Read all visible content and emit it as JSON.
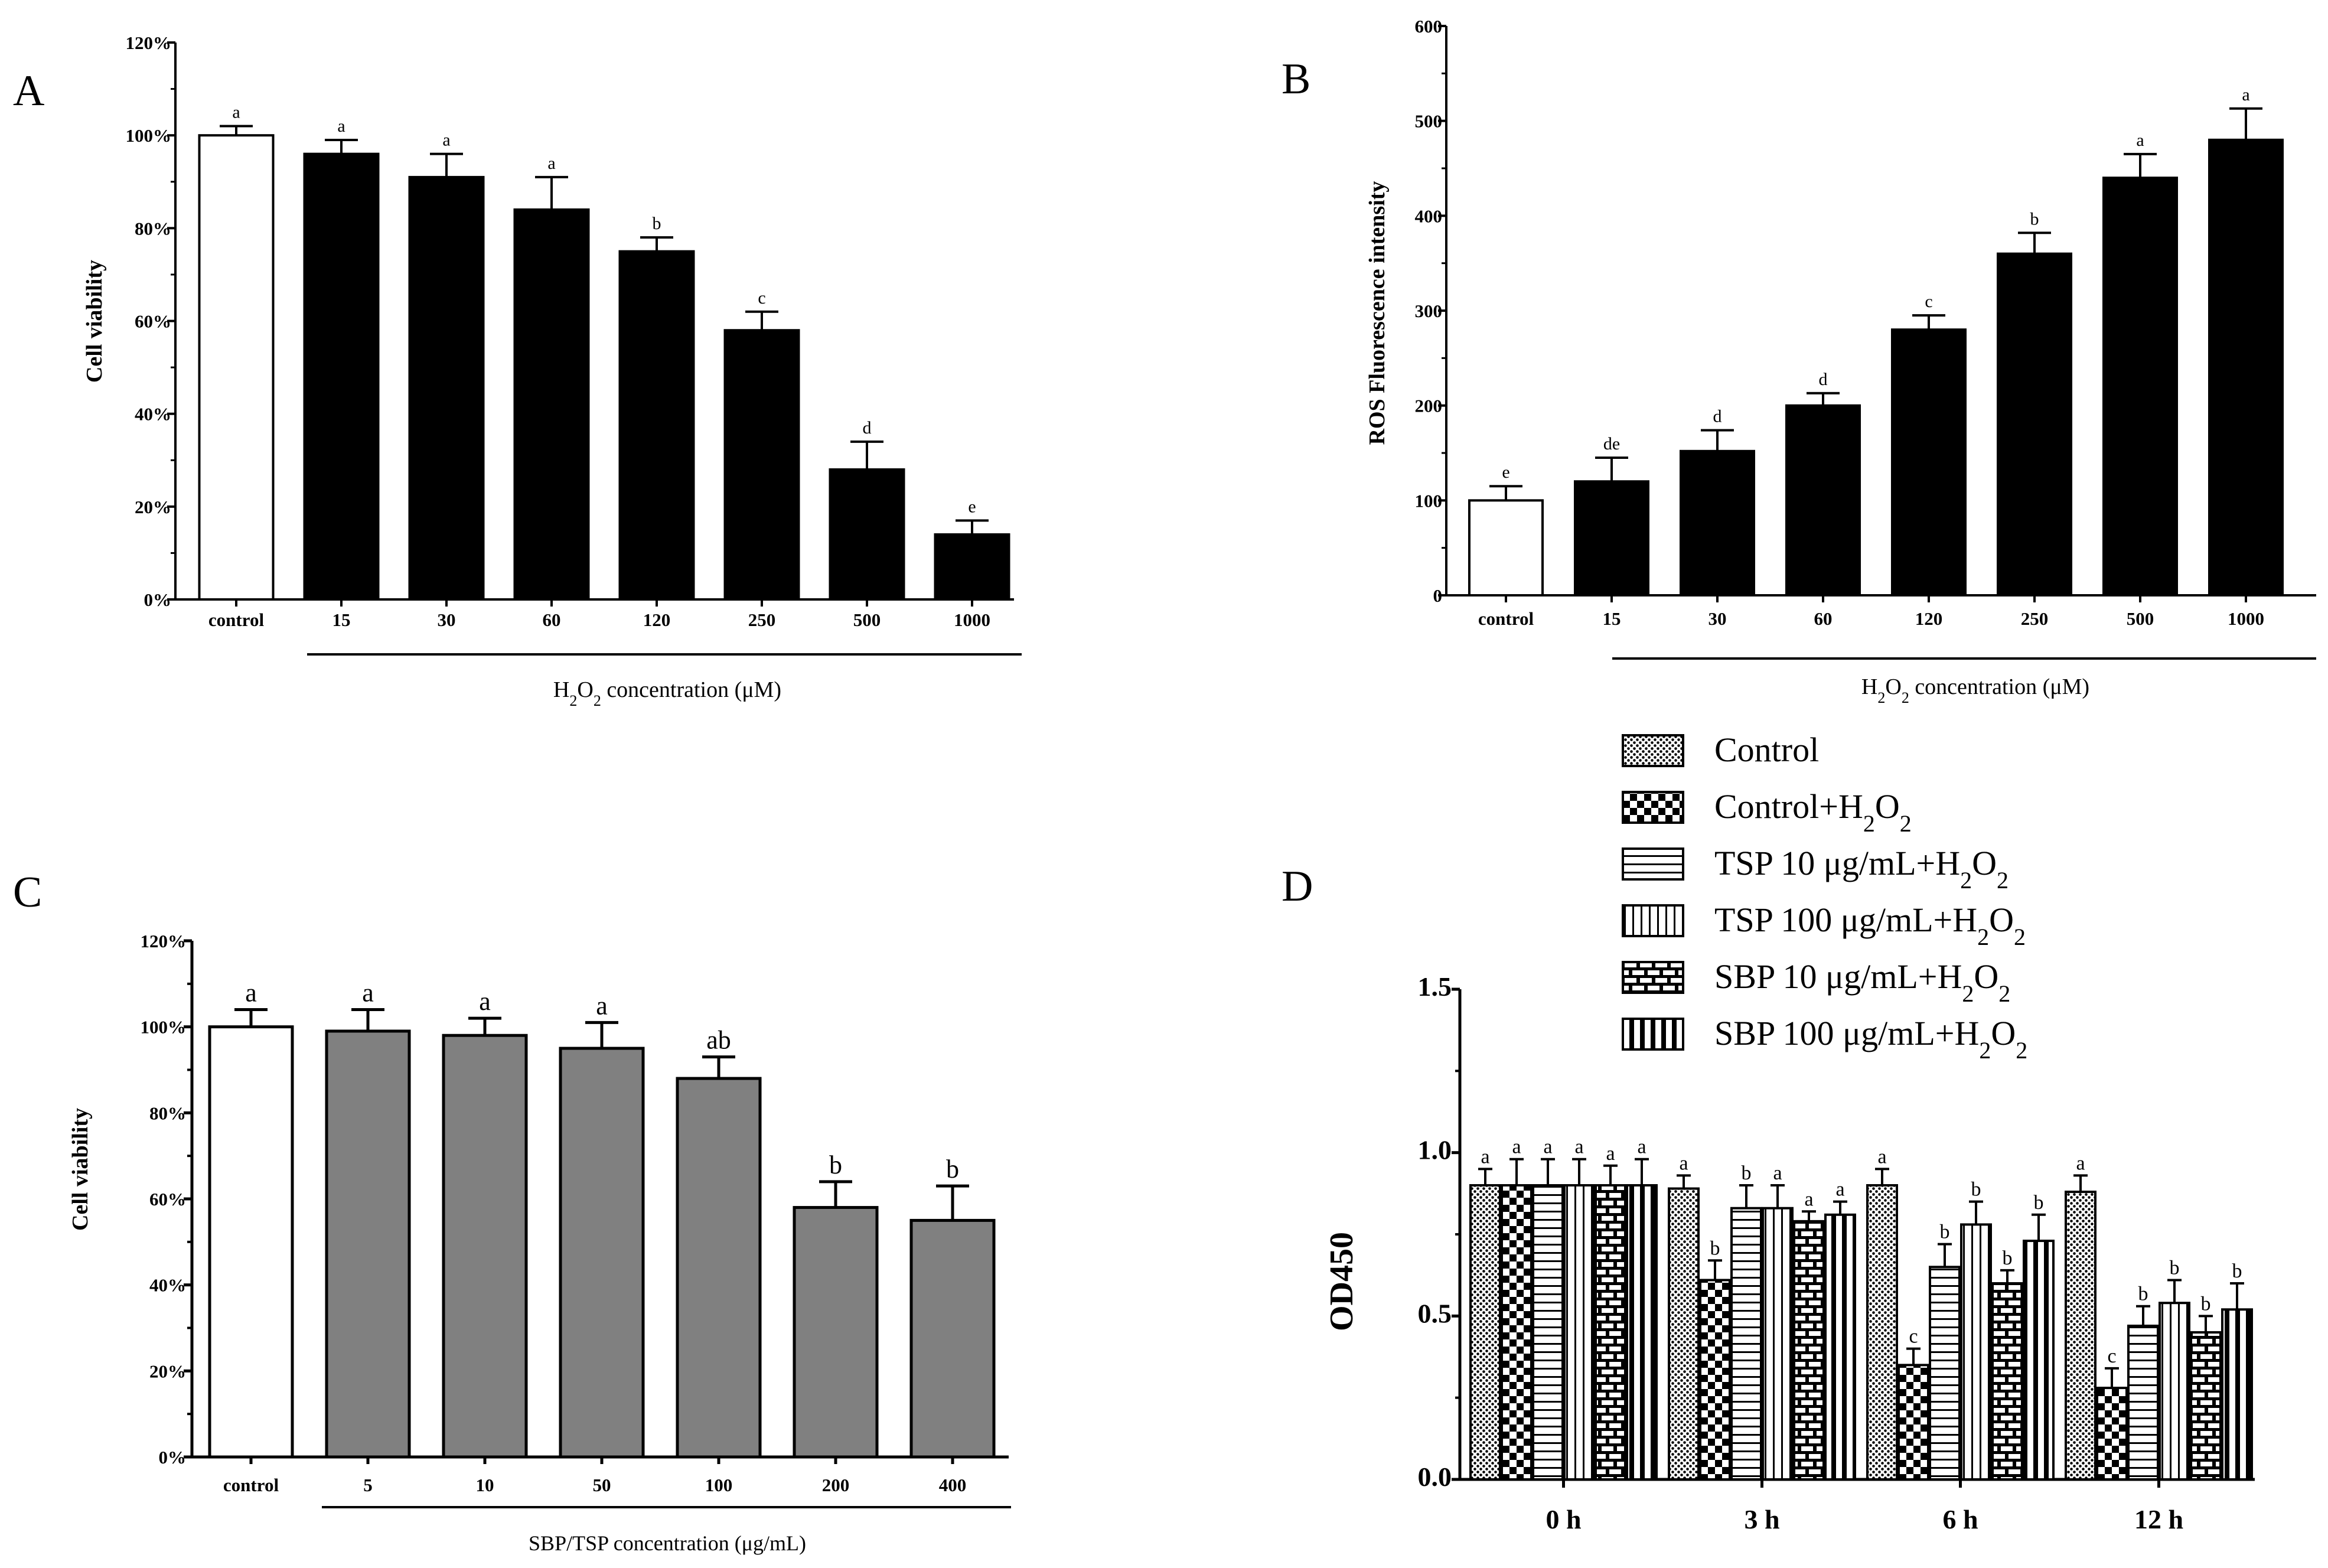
{
  "colors": {
    "black": "#000000",
    "white": "#ffffff",
    "gray": "#808080"
  },
  "chart_data": [
    {
      "id": "A",
      "panel_label": "A",
      "type": "bar",
      "ylabel": "Cell viability",
      "xtitle_parts": [
        "H",
        "2",
        "O",
        "2",
        " concentration (μM)"
      ],
      "categories": [
        "control",
        "15",
        "30",
        "60",
        "120",
        "250",
        "500",
        "1000"
      ],
      "values": [
        100,
        96,
        91,
        84,
        75,
        58,
        28,
        14
      ],
      "errors": [
        2,
        3,
        5,
        7,
        3,
        4,
        6,
        3
      ],
      "letters": [
        "a",
        "a",
        "a",
        "a",
        "b",
        "c",
        "d",
        "e"
      ],
      "fills": [
        "white",
        "black",
        "black",
        "black",
        "black",
        "black",
        "black",
        "black"
      ],
      "ylim": [
        0,
        120
      ],
      "ytick_values": [
        0,
        20,
        40,
        60,
        80,
        100,
        120
      ],
      "ytick_labels": [
        "0%",
        "20%",
        "40%",
        "60%",
        "80%",
        "100%",
        "120%"
      ]
    },
    {
      "id": "B",
      "panel_label": "B",
      "type": "bar",
      "ylabel": "ROS Fluorescence intensity",
      "xtitle_parts": [
        "H",
        "2",
        "O",
        "2",
        " concentration (μM)"
      ],
      "categories": [
        "control",
        "15",
        "30",
        "60",
        "120",
        "250",
        "500",
        "1000"
      ],
      "values": [
        100,
        120,
        152,
        200,
        280,
        360,
        440,
        480
      ],
      "errors": [
        15,
        25,
        22,
        13,
        15,
        22,
        25,
        33
      ],
      "letters": [
        "e",
        "de",
        "d",
        "d",
        "c",
        "b",
        "a",
        "a"
      ],
      "fills": [
        "white",
        "black",
        "black",
        "black",
        "black",
        "black",
        "black",
        "black"
      ],
      "ylim": [
        0,
        600
      ],
      "ytick_values": [
        0,
        100,
        200,
        300,
        400,
        500,
        600
      ],
      "ytick_labels": [
        "0",
        "100",
        "200",
        "300",
        "400",
        "500",
        "600"
      ]
    },
    {
      "id": "C",
      "panel_label": "C",
      "type": "bar",
      "ylabel": "Cell viability",
      "xtitle_parts": [
        "SBP/TSP concentration (μg/mL)"
      ],
      "categories": [
        "control",
        "5",
        "10",
        "50",
        "100",
        "200",
        "400"
      ],
      "values": [
        100,
        99,
        98,
        95,
        88,
        58,
        55
      ],
      "errors": [
        4,
        5,
        4,
        6,
        5,
        6,
        8
      ],
      "letters": [
        "a",
        "a",
        "a",
        "a",
        "ab",
        "b",
        "b"
      ],
      "fills": [
        "white",
        "gray",
        "gray",
        "gray",
        "gray",
        "gray",
        "gray"
      ],
      "ylim": [
        0,
        120
      ],
      "ytick_values": [
        0,
        20,
        40,
        60,
        80,
        100,
        120
      ],
      "ytick_labels": [
        "0%",
        "20%",
        "40%",
        "60%",
        "80%",
        "100%",
        "120%"
      ]
    },
    {
      "id": "D",
      "panel_label": "D",
      "type": "bar",
      "ylabel": "OD450",
      "categories": [
        "0 h",
        "3 h",
        "6 h",
        "12 h"
      ],
      "ylim": [
        0,
        1.5
      ],
      "ytick_values": [
        0,
        0.5,
        1.0,
        1.5
      ],
      "ytick_labels": [
        "0.0",
        "0.5",
        "1.0",
        "1.5"
      ],
      "series": [
        {
          "name": "Control",
          "pattern": "dots",
          "values": [
            0.9,
            0.89,
            0.9,
            0.88
          ],
          "errors": [
            0.05,
            0.04,
            0.05,
            0.05
          ],
          "letters": [
            "a",
            "a",
            "a",
            "a"
          ]
        },
        {
          "name": "Control+H2O2",
          "name_parts": [
            "Control+H",
            "2",
            "O",
            "2"
          ],
          "pattern": "checker",
          "values": [
            0.9,
            0.61,
            0.35,
            0.28
          ],
          "errors": [
            0.08,
            0.06,
            0.05,
            0.06
          ],
          "letters": [
            "a",
            "b",
            "c",
            "c"
          ]
        },
        {
          "name": "TSP 10 μg/mL+H2O2",
          "name_parts": [
            "TSP 10 μg/mL+H",
            "2",
            "O",
            "2"
          ],
          "pattern": "hlines",
          "values": [
            0.9,
            0.83,
            0.65,
            0.47
          ],
          "errors": [
            0.08,
            0.07,
            0.07,
            0.06
          ],
          "letters": [
            "a",
            "b",
            "b",
            "b"
          ]
        },
        {
          "name": "TSP 100 μg/mL+H2O2",
          "name_parts": [
            "TSP 100 μg/mL+H",
            "2",
            "O",
            "2"
          ],
          "pattern": "vlines",
          "values": [
            0.9,
            0.83,
            0.78,
            0.54
          ],
          "errors": [
            0.08,
            0.07,
            0.07,
            0.07
          ],
          "letters": [
            "a",
            "a",
            "b",
            "b"
          ]
        },
        {
          "name": "SBP 10 μg/mL+H2O2",
          "name_parts": [
            "SBP 10 μg/mL+H",
            "2",
            "O",
            "2"
          ],
          "pattern": "brick",
          "values": [
            0.9,
            0.79,
            0.6,
            0.45
          ],
          "errors": [
            0.06,
            0.03,
            0.04,
            0.05
          ],
          "letters": [
            "a",
            "a",
            "b",
            "b"
          ]
        },
        {
          "name": "SBP 100 μg/mL+H2O2",
          "name_parts": [
            "SBP 100 μg/mL+H",
            "2",
            "O",
            "2"
          ],
          "pattern": "thickv",
          "values": [
            0.9,
            0.81,
            0.73,
            0.52
          ],
          "errors": [
            0.08,
            0.04,
            0.08,
            0.08
          ],
          "letters": [
            "a",
            "a",
            "b",
            "b"
          ]
        }
      ]
    }
  ]
}
